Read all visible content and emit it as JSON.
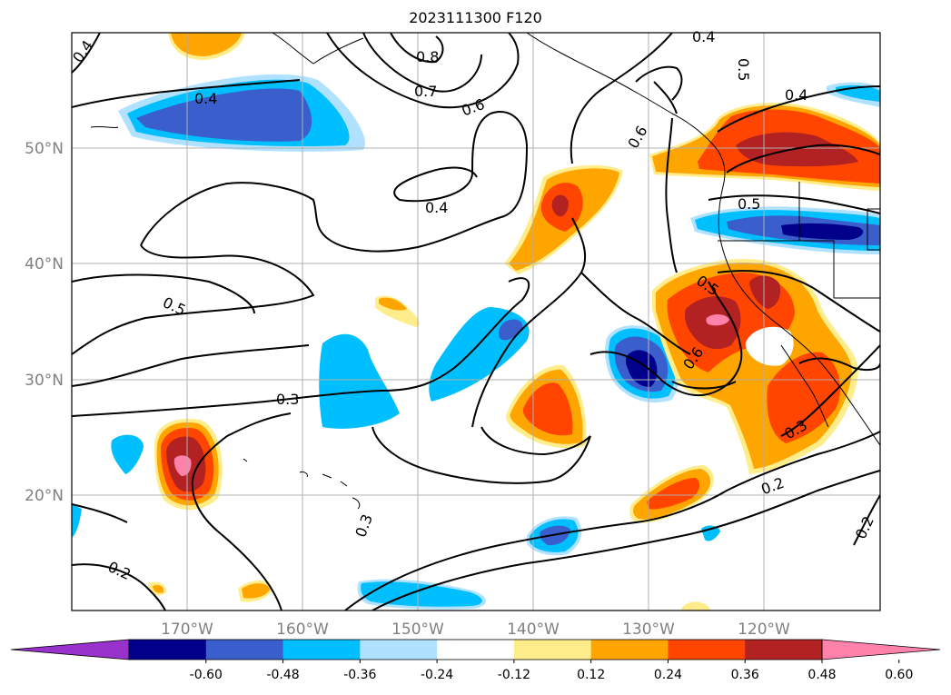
{
  "title": "2023111300 F120",
  "map": {
    "lon_ticks": [
      "170°W",
      "160°W",
      "150°W",
      "140°W",
      "130°W",
      "120°W"
    ],
    "lat_ticks": [
      "50°N",
      "40°N",
      "30°N",
      "20°N"
    ],
    "grid": true,
    "extent": {
      "lon": [
        -180,
        -110
      ],
      "lat": [
        10,
        60
      ]
    }
  },
  "contour_labels": [
    "0.4",
    "0.8",
    "0.7",
    "0.6",
    "0.4",
    "0.5",
    "0.4",
    "0.6",
    "0.4",
    "0.5",
    "0.5",
    "0.4",
    "0.6",
    "0.5",
    "0.3",
    "0.3",
    "0.3",
    "0.2",
    "0.2",
    "0.2"
  ],
  "colorbar": {
    "labels": [
      "-0.60",
      "-0.48",
      "-0.36",
      "-0.24",
      "-0.12",
      "0.12",
      "0.24",
      "0.36",
      "0.48",
      "0.60"
    ],
    "colors": [
      "#9932CC",
      "#00008B",
      "#3A5FCD",
      "#00BFFF",
      "#B0E2FF",
      "#FFFFFF",
      "#FFEC8B",
      "#FFA500",
      "#FF4500",
      "#B22222",
      "#FF82AB"
    ]
  }
}
